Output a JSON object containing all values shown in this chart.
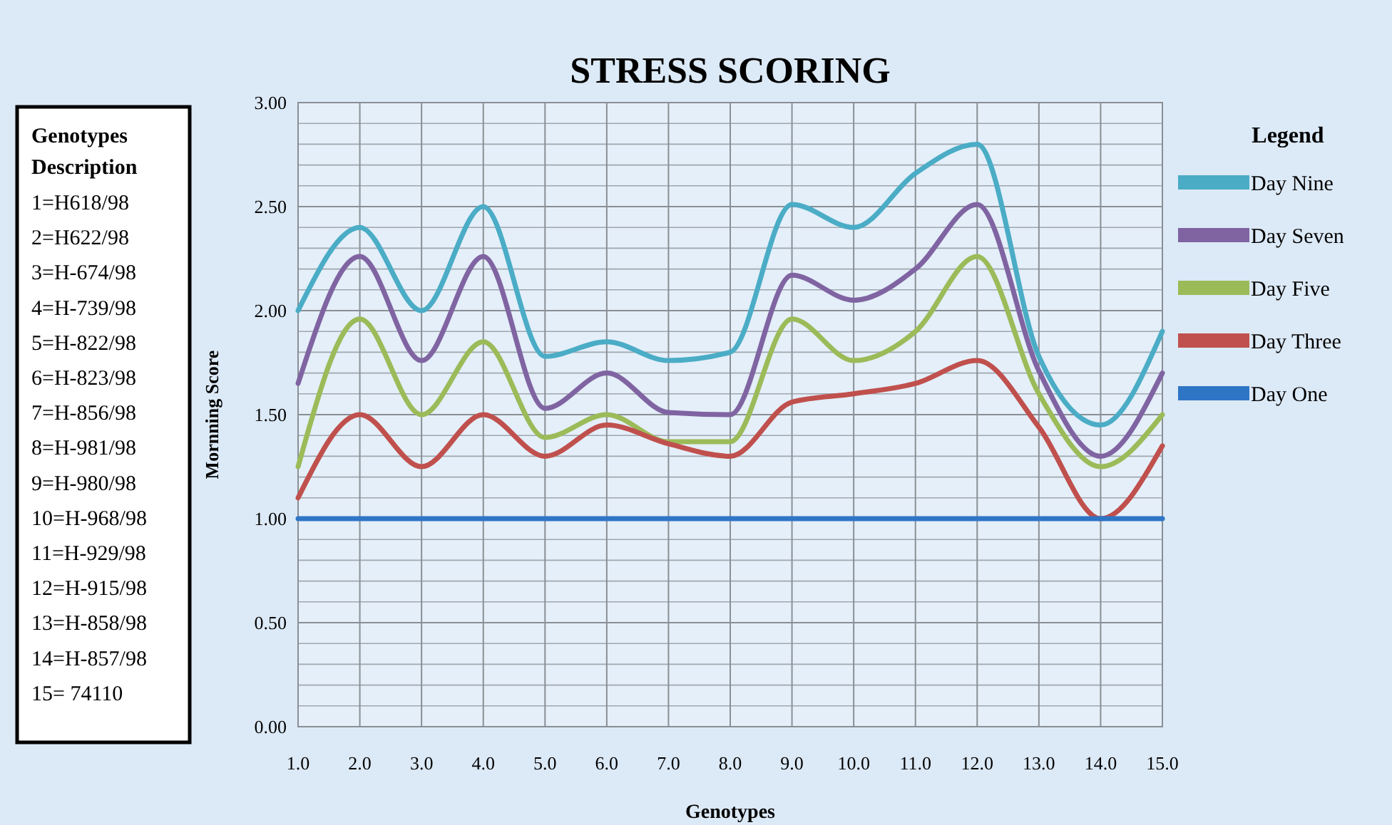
{
  "chart_data": {
    "type": "line",
    "title": "STRESS SCORING",
    "xlabel": "Genotypes",
    "ylabel": "Mornning Score",
    "legend_title": "Legend",
    "legend": "right",
    "annotations": [
      "Genotypes Description",
      "1=H618/98",
      "2=H622/98",
      "3=H-674/98",
      "4=H-739/98",
      "5=H-822/98",
      "6=H-823/98",
      "7=H-856/98",
      "8=H-981/98",
      "9=H-980/98",
      "10=H-968/98",
      "11=H-929/98",
      "12=H-915/98",
      "13=H-858/98",
      "14=H-857/98",
      "15= 74110"
    ],
    "x": [
      1,
      2,
      3,
      4,
      5,
      6,
      7,
      8,
      9,
      10,
      11,
      12,
      13,
      14,
      15
    ],
    "xlim": [
      1,
      15
    ],
    "xticks": [
      {
        "value": 1,
        "label": "1.0"
      },
      {
        "value": 2,
        "label": "2.0"
      },
      {
        "value": 3,
        "label": "3.0"
      },
      {
        "value": 4,
        "label": "4.0"
      },
      {
        "value": 5,
        "label": "5.0"
      },
      {
        "value": 6,
        "label": "6.0"
      },
      {
        "value": 7,
        "label": "7.0"
      },
      {
        "value": 8,
        "label": "8.0"
      },
      {
        "value": 9,
        "label": "9.0"
      },
      {
        "value": 10,
        "label": "10.0"
      },
      {
        "value": 11,
        "label": "11.0"
      },
      {
        "value": 12,
        "label": "12.0"
      },
      {
        "value": 13,
        "label": "13.0"
      },
      {
        "value": 14,
        "label": "14.0"
      },
      {
        "value": 15,
        "label": "15.0"
      }
    ],
    "ylim": [
      0,
      3
    ],
    "yticks": [
      {
        "value": 0,
        "label": "0.00"
      },
      {
        "value": 0.5,
        "label": "0.50"
      },
      {
        "value": 1,
        "label": "1.00"
      },
      {
        "value": 1.5,
        "label": "1.50"
      },
      {
        "value": 2,
        "label": "2.00"
      },
      {
        "value": 2.5,
        "label": "2.50"
      },
      {
        "value": 3,
        "label": "3.00"
      }
    ],
    "grid": true,
    "marker": "none",
    "line_style": "solid",
    "series": [
      {
        "name": "Day Nine",
        "color": "#4bacc6",
        "values": [
          2.0,
          2.4,
          2.0,
          2.5,
          1.78,
          1.85,
          1.76,
          1.8,
          2.51,
          2.4,
          2.66,
          2.8,
          1.78,
          1.45,
          1.9
        ]
      },
      {
        "name": "Day Seven",
        "color": "#8064a2",
        "values": [
          1.65,
          2.26,
          1.76,
          2.26,
          1.53,
          1.7,
          1.51,
          1.5,
          2.17,
          2.05,
          2.2,
          2.51,
          1.71,
          1.3,
          1.7
        ]
      },
      {
        "name": "Day Five",
        "color": "#9bbb59",
        "values": [
          1.25,
          1.96,
          1.5,
          1.85,
          1.39,
          1.5,
          1.37,
          1.37,
          1.96,
          1.76,
          1.9,
          2.26,
          1.6,
          1.25,
          1.5
        ]
      },
      {
        "name": "Day Three",
        "color": "#c0504d",
        "values": [
          1.1,
          1.5,
          1.25,
          1.5,
          1.3,
          1.45,
          1.36,
          1.3,
          1.56,
          1.6,
          1.65,
          1.76,
          1.44,
          1.0,
          1.35
        ]
      },
      {
        "name": "Day One",
        "color": "#2e75c6",
        "values": [
          1,
          1,
          1,
          1,
          1,
          1,
          1,
          1,
          1,
          1,
          1,
          1,
          1,
          1,
          1
        ]
      }
    ]
  }
}
